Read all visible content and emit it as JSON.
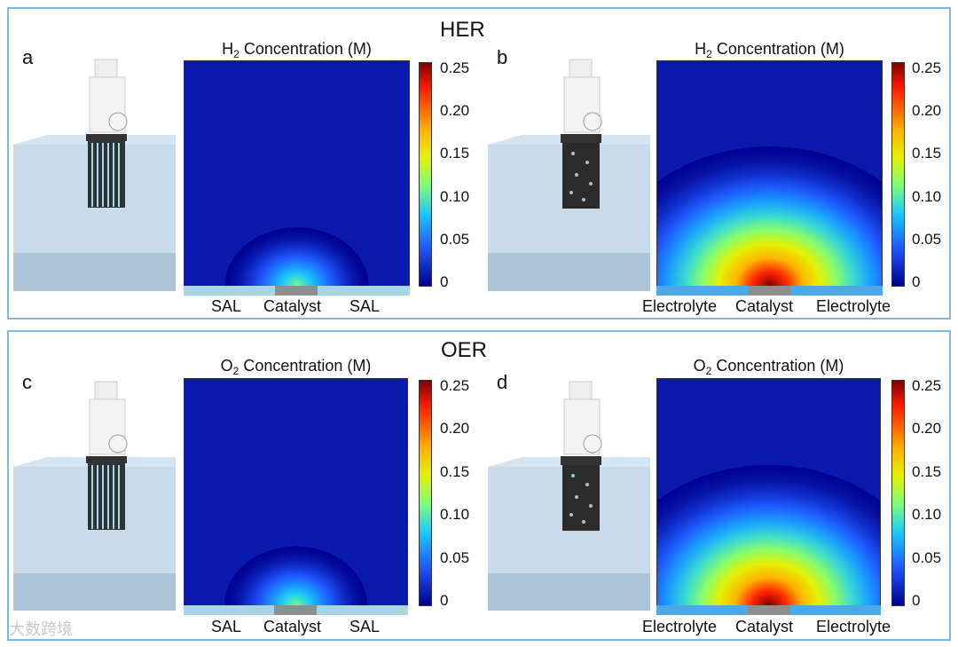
{
  "sections": {
    "top": {
      "title": "HER"
    },
    "bottom": {
      "title": "OER"
    }
  },
  "panels": {
    "a": {
      "letter": "a",
      "title_prefix": "H",
      "title_sub": "2",
      "title_suffix": " Concentration (M)",
      "left_label": "SAL",
      "center_label": "Catalyst",
      "right_label": "SAL",
      "peak_intensity": 0.1
    },
    "b": {
      "letter": "b",
      "title_prefix": "H",
      "title_sub": "2",
      "title_suffix": " Concentration (M)",
      "left_label": "Electrolyte",
      "center_label": "Catalyst",
      "right_label": "Electrolyte",
      "peak_intensity": 0.25
    },
    "c": {
      "letter": "c",
      "title_prefix": "O",
      "title_sub": "2",
      "title_suffix": " Concentration (M)",
      "left_label": "SAL",
      "center_label": "Catalyst",
      "right_label": "SAL",
      "peak_intensity": 0.1
    },
    "d": {
      "letter": "d",
      "title_prefix": "O",
      "title_sub": "2",
      "title_suffix": " Concentration (M)",
      "left_label": "Electrolyte",
      "center_label": "Catalyst",
      "right_label": "Electrolyte",
      "peak_intensity": 0.25
    }
  },
  "colorbar": {
    "ticks": [
      "0.25",
      "0.20",
      "0.15",
      "0.10",
      "0.05",
      "0"
    ],
    "colors": [
      "#7f0000",
      "#ff1a00",
      "#ffb000",
      "#e6f000",
      "#7cff7a",
      "#18c6ff",
      "#1f58ff",
      "#00008f"
    ]
  },
  "watermark": "大数跨境",
  "colors": {
    "frame": "#7fb7e6",
    "sal": "#a8d6e0",
    "electrolyte": "#4fa8e6",
    "catalyst": "#8e8e8e"
  }
}
